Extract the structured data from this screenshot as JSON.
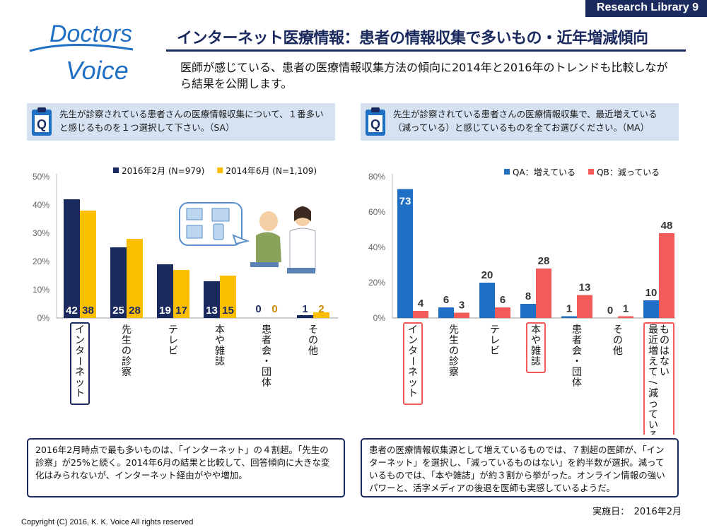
{
  "header": {
    "badge": "Research Library  9",
    "logo_line1": "Doctors",
    "logo_line2": "Voice",
    "title": "インターネット医療情報：患者の情報収集で多いもの・近年増減傾向",
    "lead": "医師が感じている、患者の医療情報収集方法の傾向に2014年と2016年のトレンドも比較しながら結果を公開します。"
  },
  "questions": {
    "left": "先生が診察されている患者さんの医療情報収集について、１番多いと感じるものを１つ選択して下さい。（SA）",
    "right": "先生が診察されている患者さんの医療情報収集で、最近増えている（減っている）と感じているものを全てお選びください。（MA）"
  },
  "colors": {
    "navy": "#1b2a5e",
    "gold": "#fcbf00",
    "blue": "#1f6fc5",
    "red": "#f35a5a",
    "highlight_navy": "#1b2a5e",
    "highlight_red": "#f35a5a"
  },
  "chart_data": [
    {
      "type": "bar",
      "categories": [
        "インターネット",
        "先生の診察",
        "テレビ",
        "本や雑誌",
        "患者会・団体",
        "その他"
      ],
      "series": [
        {
          "name": "2016年2月 (N=979)",
          "values": [
            42,
            25,
            19,
            13,
            0,
            1
          ]
        },
        {
          "name": "2014年6月 (N=1,109)",
          "values": [
            38,
            28,
            17,
            15,
            0,
            2
          ]
        }
      ],
      "ylim": [
        0,
        50
      ],
      "yticks": [
        "0%",
        "10%",
        "20%",
        "30%",
        "40%",
        "50%"
      ],
      "highlight": [
        "インターネット"
      ],
      "legend": "top",
      "grid": false
    },
    {
      "type": "bar",
      "categories": [
        "インターネット",
        "先生の診察",
        "テレビ",
        "本や雑誌",
        "患者会・団体",
        "その他",
        "最近増えて/減っている ものはない"
      ],
      "series": [
        {
          "name": "QA：増えている",
          "values": [
            73,
            6,
            20,
            8,
            1,
            0,
            10
          ]
        },
        {
          "name": "QB：減っている",
          "values": [
            4,
            3,
            6,
            28,
            13,
            1,
            48
          ]
        }
      ],
      "ylim": [
        0,
        80
      ],
      "yticks": [
        "0%",
        "20%",
        "40%",
        "60%",
        "80%"
      ],
      "highlight": [
        "インターネット",
        "本や雑誌",
        "最近増えて/減っている ものはない"
      ],
      "legend": "top",
      "grid": false
    }
  ],
  "labels": {
    "left": [
      "インターネット",
      "先生の診察",
      "テレビ",
      "本や雑誌",
      "患者会・団体",
      "その他"
    ],
    "right": [
      "インターネット",
      "先生の診察",
      "テレビ",
      "本や雑誌",
      "患者会・団体",
      "その他",
      "ものはない|最近増えて/減っている"
    ]
  },
  "summaries": {
    "left": "2016年2月時点で最も多いものは、「インターネット」の４割超。「先生の診察」が25%と続く。2014年6月の結果と比較して、回答傾向に大きな変化はみられないが、インターネット経由がやや増加。",
    "right": "患者の医療情報収集源として増えているものでは、７割超の医師が、「インターネット」を選択し、「減っているものはない」を約半数が選択。減っているものでは、「本や雑誌」が約３割から挙がった。オンライン情報の強いパワーと、活字メディアの後退を医師も実感しているようだ。"
  },
  "footer": {
    "date": "実施日：　2016年2月",
    "copyright": "Copyright (C) 2016, K. K. Voice  All rights reserved"
  }
}
